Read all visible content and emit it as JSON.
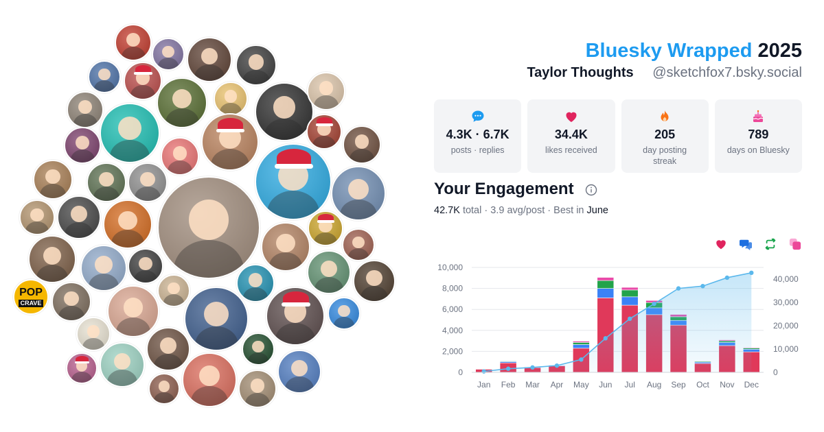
{
  "header": {
    "brand": "Bluesky Wrapped",
    "year": "2025",
    "display_name": "Taylor Thoughts",
    "handle": "@sketchfox7.bsky.social"
  },
  "stats": [
    {
      "icon": "speech-bubble-icon",
      "value": "4.3K · 6.7K",
      "label": "posts · replies",
      "color": "#1d9bf0"
    },
    {
      "icon": "heart-icon",
      "value": "34.4K",
      "label": "likes received",
      "color": "#e0245e"
    },
    {
      "icon": "flame-icon",
      "value": "205",
      "label": "day posting streak",
      "color": "#f97316"
    },
    {
      "icon": "cake-icon",
      "value": "789",
      "label": "days on Bluesky",
      "color": "#ec4899"
    }
  ],
  "engagement": {
    "title": "Your Engagement",
    "total_value": "42.7K",
    "total_label": "total",
    "avg": "3.9 avg/post",
    "best_label": "Best in",
    "best_month": "June"
  },
  "legend_icons": [
    {
      "icon": "heart-icon",
      "color": "#e0245e"
    },
    {
      "icon": "reply-icon",
      "color": "#1d6fe0"
    },
    {
      "icon": "repost-icon",
      "color": "#16a34a"
    },
    {
      "icon": "quote-icon",
      "color": "#ec4899"
    }
  ],
  "chart_data": {
    "type": "bar",
    "categories": [
      "Jan",
      "Feb",
      "Mar",
      "Apr",
      "May",
      "Jun",
      "Jul",
      "Aug",
      "Sep",
      "Oct",
      "Nov",
      "Dec"
    ],
    "stacked": true,
    "series": [
      {
        "color": "#e0395a",
        "values": [
          300,
          900,
          450,
          620,
          2300,
          7100,
          6400,
          5500,
          4500,
          850,
          2550,
          1950
        ]
      },
      {
        "color": "#3b82f6",
        "values": [
          40,
          120,
          60,
          70,
          350,
          900,
          800,
          650,
          450,
          120,
          300,
          250
        ]
      },
      {
        "color": "#22a34a",
        "values": [
          20,
          60,
          30,
          40,
          200,
          750,
          650,
          500,
          350,
          80,
          150,
          120
        ]
      },
      {
        "color": "#e84aa8",
        "values": [
          10,
          40,
          20,
          20,
          120,
          300,
          250,
          200,
          220,
          40,
          100,
          60
        ]
      }
    ],
    "cumulative": {
      "color": "#5bb8ec",
      "values": [
        400,
        1550,
        2100,
        2900,
        5500,
        14600,
        23000,
        29400,
        36000,
        37000,
        40600,
        42700
      ]
    },
    "ylim": [
      0,
      10000
    ],
    "yticks": [
      "0",
      "2,000",
      "4,000",
      "6,000",
      "8,000",
      "10,000"
    ],
    "y2lim": [
      0,
      45000
    ],
    "y2ticks": [
      "0",
      "10,000",
      "20,000",
      "30,000",
      "40,000"
    ],
    "grid": true
  },
  "avatars": [
    {
      "bg": "#c0392b"
    },
    {
      "bg": "#7d6f9e"
    },
    {
      "bg": "#5c4033"
    },
    {
      "bg": "#3a3a3a"
    },
    {
      "bg": "#4a6fa5"
    },
    {
      "bg": "#b94a48"
    },
    {
      "bg": "#556b2f"
    },
    {
      "bg": "#e8c06b"
    },
    {
      "bg": "#2c2c2c"
    },
    {
      "bg": "#d9c2a7"
    },
    {
      "bg": "#8a7f72"
    },
    {
      "bg": "#1abcb0"
    },
    {
      "bg": "#b77f5a"
    },
    {
      "bg": "#a13d2d"
    },
    {
      "bg": "#6b4c3b"
    },
    {
      "bg": "#7a3e6a"
    },
    {
      "bg": "#e87070"
    },
    {
      "bg": "#2aa8e0"
    },
    {
      "bg": "#a67c52"
    },
    {
      "bg": "#5a6e4f"
    },
    {
      "bg": "#8c8c8c"
    },
    {
      "bg": "#6e8bb0"
    },
    {
      "bg": "#b0916b"
    },
    {
      "bg": "#444444"
    },
    {
      "bg": "#d2691e"
    },
    {
      "bg": "#9e8a7a"
    },
    {
      "bg": "#c9a227"
    },
    {
      "bg": "#7a5c44"
    },
    {
      "bg": "#8fa8c8"
    },
    {
      "bg": "#3b3b3b"
    },
    {
      "bg": "#b08060"
    },
    {
      "bg": "#5f8f6f"
    },
    {
      "bg": "#9c5c4c"
    },
    {
      "bg": "#c8b08f"
    },
    {
      "bg": "#1f8fb0"
    },
    {
      "bg": "#4c3b2c"
    },
    {
      "bg": "#7a6a5a"
    },
    {
      "bg": "#d8a48f"
    },
    {
      "bg": "#3a5a8a"
    },
    {
      "bg": "#5a4a4a"
    },
    {
      "bg": "#2e86de"
    },
    {
      "bg": "#e6e0d0"
    },
    {
      "bg": "#6a4f3f"
    },
    {
      "bg": "#1e4a2a"
    },
    {
      "bg": "#b55a8a"
    },
    {
      "bg": "#9ad0c0"
    },
    {
      "bg": "#8a5a4a"
    },
    {
      "bg": "#d96a5a"
    },
    {
      "bg": "#a08a70"
    },
    {
      "bg": "#4f7bbf"
    }
  ],
  "popcrave": {
    "line1": "POP",
    "line2": "CRAVE"
  }
}
